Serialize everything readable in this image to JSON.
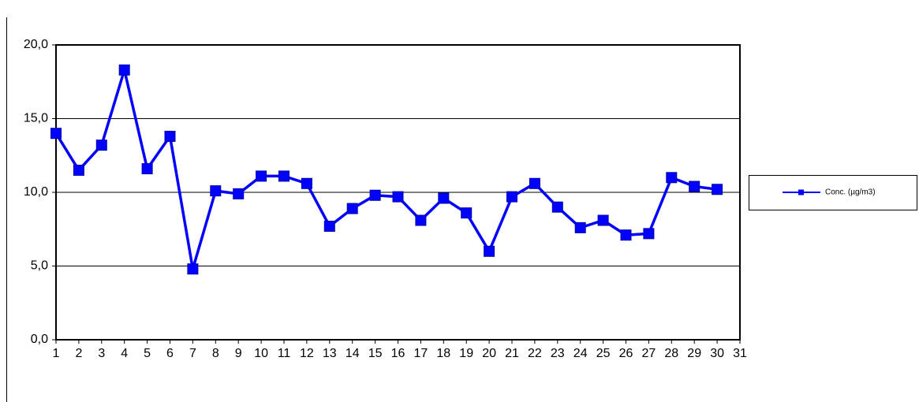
{
  "chart_data": {
    "type": "line",
    "categories": [
      "1",
      "2",
      "3",
      "4",
      "5",
      "6",
      "7",
      "8",
      "9",
      "10",
      "11",
      "12",
      "13",
      "14",
      "15",
      "16",
      "17",
      "18",
      "19",
      "20",
      "21",
      "22",
      "23",
      "24",
      "25",
      "26",
      "27",
      "28",
      "29",
      "30",
      "31"
    ],
    "series": [
      {
        "name": "Conc. (µg/m3)",
        "color": "#0000ff",
        "values": [
          14.0,
          11.5,
          13.2,
          18.3,
          11.6,
          13.8,
          4.8,
          10.1,
          9.9,
          11.1,
          11.1,
          10.6,
          7.7,
          8.9,
          9.8,
          9.7,
          8.1,
          9.6,
          8.6,
          6.0,
          9.7,
          10.6,
          9.0,
          7.6,
          8.1,
          7.1,
          7.2,
          11.0,
          10.4,
          10.2,
          null
        ]
      }
    ],
    "ylim": [
      0,
      20
    ],
    "yticks": [
      {
        "value": 0,
        "label": "0,0"
      },
      {
        "value": 5,
        "label": "5,0"
      },
      {
        "value": 10,
        "label": "10,0"
      },
      {
        "value": 15,
        "label": "15,0"
      },
      {
        "value": 20,
        "label": "20,0"
      }
    ],
    "grid": true,
    "legend": "right"
  }
}
